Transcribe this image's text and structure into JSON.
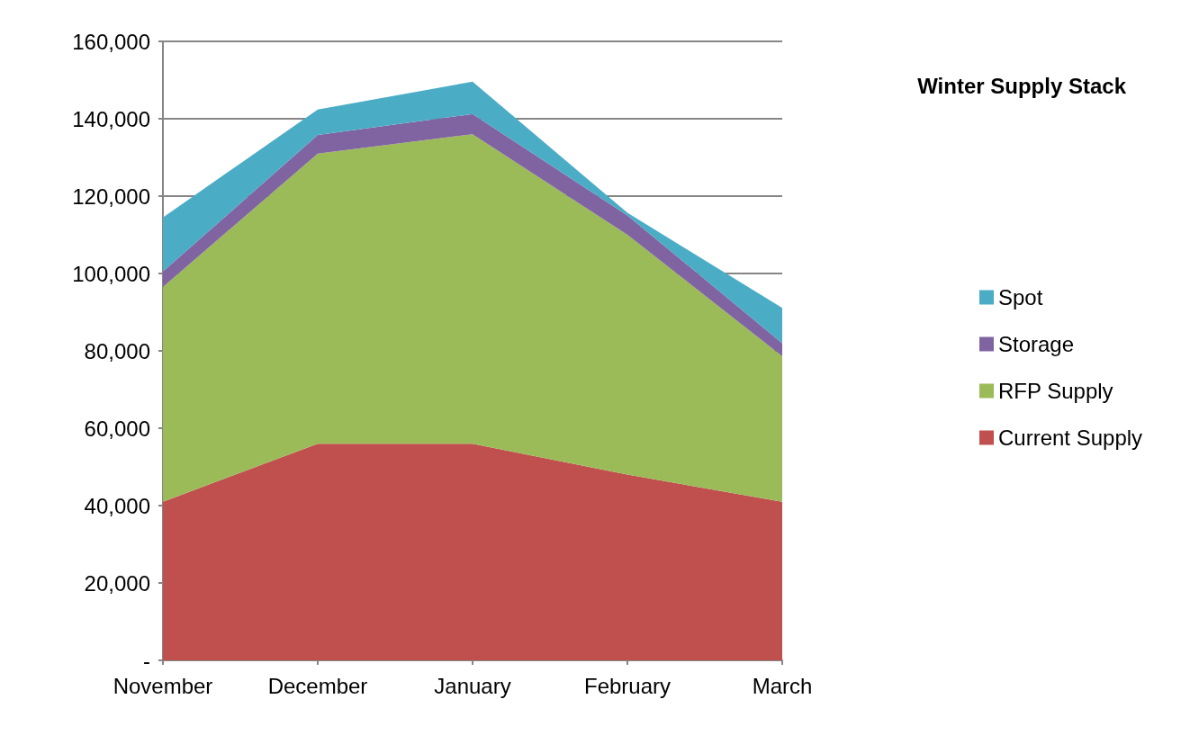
{
  "chart_data": {
    "type": "area",
    "stacked": true,
    "title": "Winter Supply Stack",
    "categories": [
      "November",
      "December",
      "January",
      "February",
      "March"
    ],
    "series": [
      {
        "name": "Current Supply",
        "color": "#c0504d",
        "values": [
          41000,
          56000,
          56000,
          48000,
          41000
        ]
      },
      {
        "name": "RFP Supply",
        "color": "#9bbb59",
        "values": [
          55500,
          75000,
          80000,
          62000,
          37600
        ]
      },
      {
        "name": "Storage",
        "color": "#8064a2",
        "values": [
          4000,
          4800,
          5200,
          5000,
          3400
        ]
      },
      {
        "name": "Spot",
        "color": "#4bacc6",
        "values": [
          14000,
          6600,
          8400,
          700,
          9100
        ]
      }
    ],
    "ylim": [
      0,
      160000
    ],
    "yticks": [
      {
        "value": 0,
        "label": "-"
      },
      {
        "value": 20000,
        "label": "20,000"
      },
      {
        "value": 40000,
        "label": "40,000"
      },
      {
        "value": 60000,
        "label": "60,000"
      },
      {
        "value": 80000,
        "label": "80,000"
      },
      {
        "value": 100000,
        "label": "100,000"
      },
      {
        "value": 120000,
        "label": "120,000"
      },
      {
        "value": 140000,
        "label": "140,000"
      },
      {
        "value": 160000,
        "label": "160,000"
      }
    ],
    "grid": "y",
    "legend": "right"
  }
}
